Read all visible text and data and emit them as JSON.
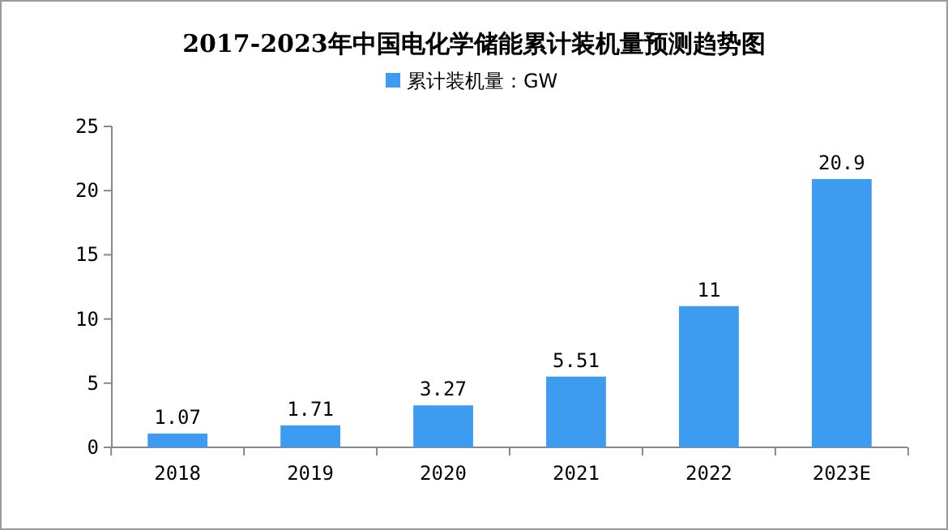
{
  "chart_data": {
    "type": "bar",
    "title": "2017-2023年中国电化学储能累计装机量预测趋势图",
    "categories": [
      "2018",
      "2019",
      "2020",
      "2021",
      "2022",
      "2023E"
    ],
    "series": [
      {
        "name": "累计装机量：GW",
        "color": "#3d9cf0",
        "values": [
          1.07,
          1.71,
          3.27,
          5.51,
          11,
          20.9
        ]
      }
    ],
    "ylim": [
      0,
      25
    ],
    "yticks": [
      0,
      5,
      10,
      15,
      20,
      25
    ],
    "grid": false,
    "legend": "top",
    "data_labels": true
  }
}
